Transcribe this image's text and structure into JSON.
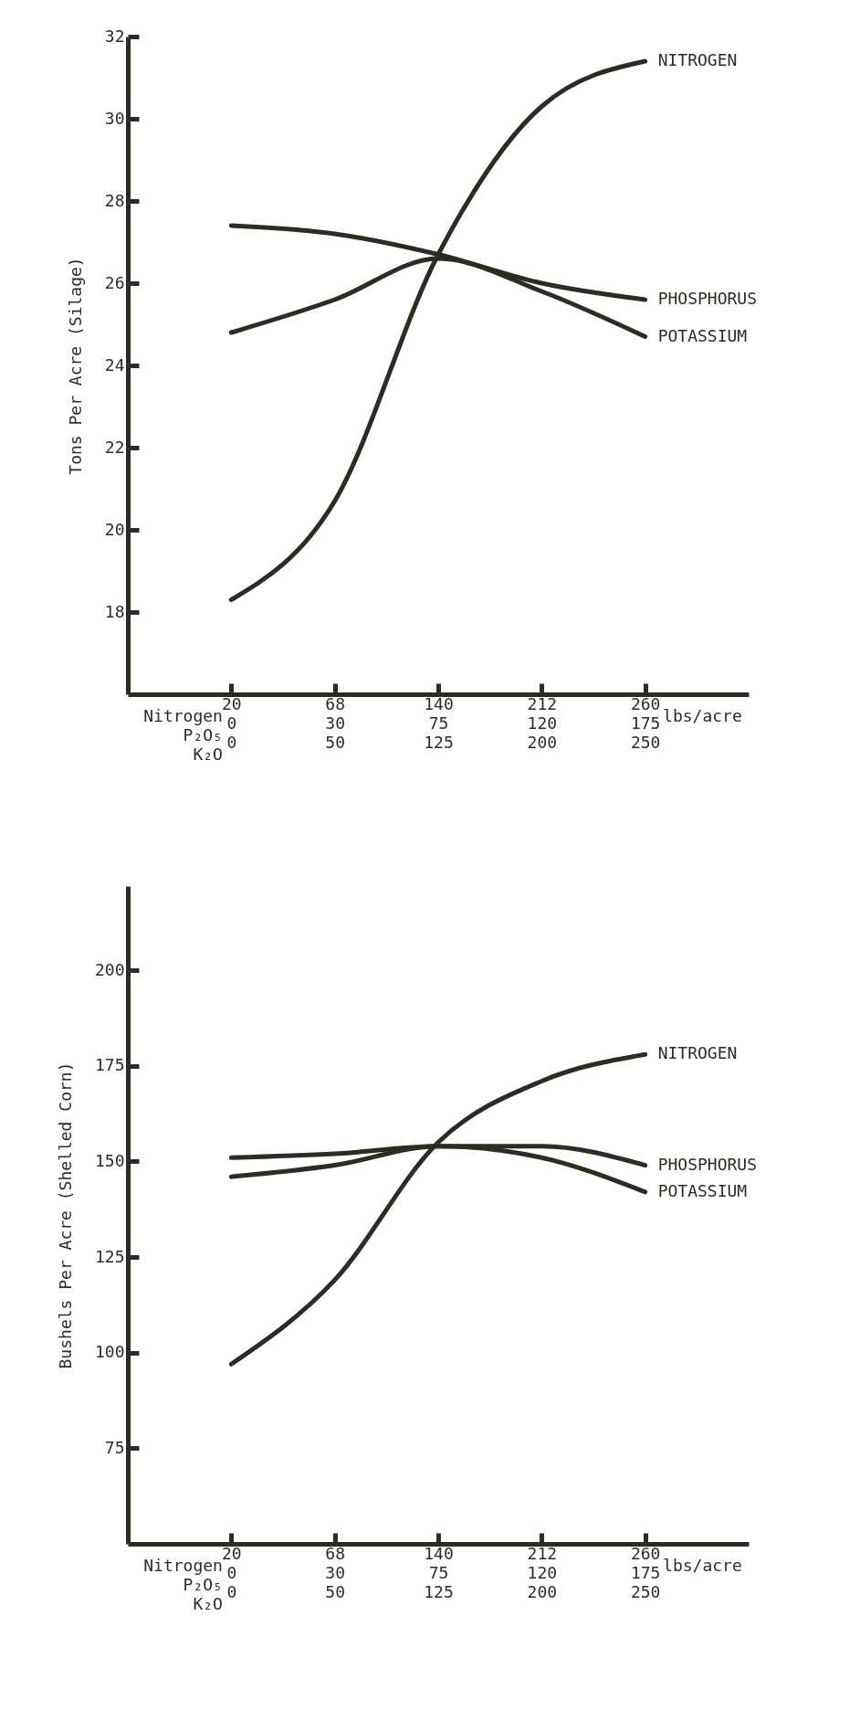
{
  "chart_data": [
    {
      "type": "line",
      "ylabel": "Tons Per Acre (Silage)",
      "categories": [
        "20\n0\n0",
        "68\n30\n50",
        "140\n75\n125",
        "212\n120\n200",
        "260\n175\n250"
      ],
      "series": [
        {
          "name": "NITROGEN",
          "color": "#2e2b24",
          "values": [
            18.3,
            20.7,
            26.7,
            30.3,
            31.4
          ]
        },
        {
          "name": "PHOSPHORUS",
          "color": "#2e2b24",
          "values": [
            27.4,
            27.2,
            26.7,
            26.0,
            25.6
          ]
        },
        {
          "name": "POTASSIUM",
          "color": "#2e2b24",
          "values": [
            24.8,
            25.6,
            26.6,
            25.8,
            24.7
          ]
        }
      ],
      "ylim": [
        16,
        32
      ],
      "yticks": [
        18,
        20,
        22,
        24,
        26,
        28,
        30,
        32
      ],
      "annotations": [
        "Nitrogen",
        "P₂O₅",
        "K₂O",
        "lbs/acre"
      ]
    },
    {
      "type": "line",
      "ylabel": "Bushels Per Acre (Shelled Corn)",
      "categories": [
        "20\n0\n0",
        "68\n30\n50",
        "140\n75\n125",
        "212\n120\n200",
        "260\n175\n250"
      ],
      "series": [
        {
          "name": "NITROGEN",
          "color": "#2e2b24",
          "values": [
            97,
            119,
            155,
            171,
            178
          ]
        },
        {
          "name": "PHOSPHORUS",
          "color": "#2e2b24",
          "values": [
            151,
            152,
            154,
            154,
            149
          ]
        },
        {
          "name": "POTASSIUM",
          "color": "#2e2b24",
          "values": [
            146,
            149,
            154,
            151,
            142
          ]
        }
      ],
      "ylim": [
        50,
        222
      ],
      "yticks": [
        75,
        100,
        125,
        150,
        175,
        200
      ],
      "annotations": [
        "Nitrogen",
        "P₂O₅",
        "K₂O",
        "lbs/acre"
      ]
    }
  ]
}
